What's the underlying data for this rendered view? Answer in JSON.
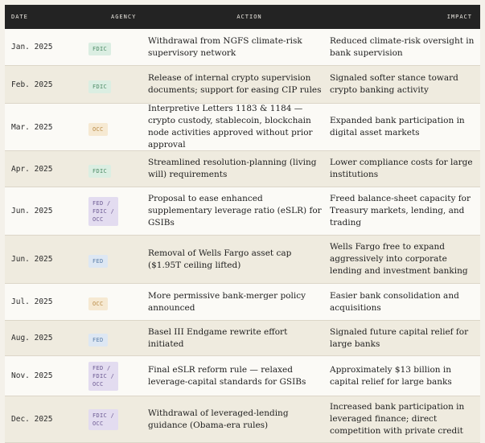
{
  "headers": {
    "date": "DATE",
    "agency": "AGENCY",
    "action": "ACTION",
    "impact": "IMPACT"
  },
  "rows": [
    {
      "date": "Jan. 2025",
      "agency": "FDIC",
      "agency_kind": "fdic",
      "action": "Withdrawal from NGFS climate-risk supervisory network",
      "impact": "Reduced climate-risk oversight in bank supervision"
    },
    {
      "date": "Feb. 2025",
      "agency": "FDIC",
      "agency_kind": "fdic",
      "action": "Release of internal crypto supervision documents; support for easing CIP rules",
      "impact": "Signaled softer stance toward crypto banking activity"
    },
    {
      "date": "Mar. 2025",
      "agency": "OCC",
      "agency_kind": "occ",
      "action": "Interpretive Letters 1183 & 1184 — crypto custody, stablecoin, blockchain node activities approved without prior approval",
      "impact": "Expanded bank participation in digital asset markets"
    },
    {
      "date": "Apr. 2025",
      "agency": "FDIC",
      "agency_kind": "fdic",
      "action": "Streamlined resolution-planning (living will) requirements",
      "impact": "Lower compliance costs for large institutions"
    },
    {
      "date": "Jun. 2025",
      "agency": "FED /\nFDIC /\nOCC",
      "agency_kind": "multi",
      "action": "Proposal to ease enhanced supplementary leverage ratio (eSLR) for GSIBs",
      "impact": "Freed balance-sheet capacity for Treasury markets, lending, and trading"
    },
    {
      "date": "Jun. 2025",
      "agency": "FED",
      "agency_kind": "fed",
      "action": "Removal of Wells Fargo asset cap ($1.95T ceiling lifted)",
      "impact": "Wells Fargo free to expand aggressively into corporate lending and investment banking"
    },
    {
      "date": "Jul. 2025",
      "agency": "OCC",
      "agency_kind": "occ",
      "action": "More permissive bank-merger policy announced",
      "impact": "Easier bank consolidation and acquisitions"
    },
    {
      "date": "Aug. 2025",
      "agency": "FED",
      "agency_kind": "fed",
      "action": "Basel III Endgame rewrite effort initiated",
      "impact": "Signaled future capital relief for large banks"
    },
    {
      "date": "Nov. 2025",
      "agency": "FED /\nFDIC /\nOCC",
      "agency_kind": "multi",
      "action": "Final eSLR reform rule — relaxed leverage-capital standards for GSIBs",
      "impact": "Approximately $13 billion in capital relief for large banks"
    },
    {
      "date": "Dec. 2025",
      "agency": "FDIC /\nOCC",
      "agency_kind": "multi",
      "action": "Withdrawal of leveraged-lending guidance (Obama-era rules)",
      "impact": "Increased bank participation in leveraged finance; direct competition with private credit"
    }
  ]
}
